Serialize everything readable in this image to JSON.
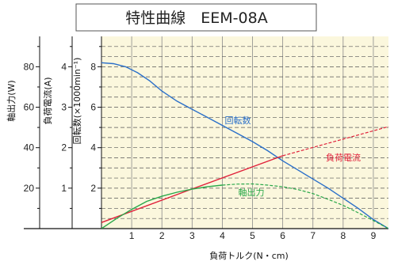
{
  "title": "特性曲線　EEM-08A",
  "chart_data": {
    "type": "line",
    "title": "特性曲線　EEM-08A",
    "xlabel": "負荷トルク(N・cm)",
    "xlim": [
      0,
      9.5
    ],
    "x_ticks": [
      1,
      2,
      3,
      4,
      5,
      6,
      7,
      8,
      9
    ],
    "grid": true,
    "y_axes": [
      {
        "label": "軸出力(W)",
        "ticks": [
          20,
          40,
          60,
          80
        ],
        "ylim": [
          0,
          95
        ]
      },
      {
        "label": "負荷電流(A)",
        "ticks": [
          1,
          2,
          3,
          4
        ],
        "ylim": [
          0,
          4.75
        ]
      },
      {
        "label": "回転数(×1000min⁻¹)",
        "ticks": [
          2,
          4,
          6,
          8
        ],
        "ylim": [
          0,
          9.5
        ]
      }
    ],
    "series": [
      {
        "name": "回転数",
        "axis": "回転数(×1000min⁻¹)",
        "color": "#2a6fc9",
        "style": "solid",
        "x": [
          0,
          0.4,
          0.8,
          1.2,
          1.6,
          2.0,
          2.5,
          3.0,
          3.5,
          4.0,
          4.5,
          5.0,
          5.5,
          6.0,
          6.5,
          7.0,
          7.5,
          8.0,
          8.5,
          9.0,
          9.5
        ],
        "values": [
          8.2,
          8.15,
          8.0,
          7.7,
          7.3,
          6.8,
          6.3,
          5.9,
          5.5,
          5.1,
          4.7,
          4.3,
          3.85,
          3.35,
          2.9,
          2.45,
          2.0,
          1.5,
          1.0,
          0.45,
          0.0
        ]
      },
      {
        "name": "負荷電流",
        "axis": "負荷電流(A)",
        "color": "#e0223b",
        "style": "solid-then-dashed",
        "solid_until": 6,
        "x": [
          0,
          3,
          6,
          9.5
        ],
        "values": [
          0.15,
          0.98,
          1.8,
          2.52
        ]
      },
      {
        "name": "軸出力",
        "axis": "軸出力(W)",
        "color": "#2aa84a",
        "style": "solid-then-dashed",
        "solid_until": 4,
        "x": [
          0,
          0.5,
          1.0,
          1.5,
          2.0,
          2.5,
          3.0,
          3.5,
          4.0,
          4.5,
          5.0,
          5.5,
          6.0,
          6.5,
          7.0,
          7.5,
          8.0,
          8.5,
          9.0,
          9.5
        ],
        "values": [
          0,
          5,
          9.5,
          13.5,
          16,
          18,
          19.5,
          20.7,
          21.5,
          22,
          22.1,
          21.5,
          20.7,
          19.3,
          17.3,
          14.5,
          11.5,
          7.8,
          4.0,
          0
        ]
      }
    ]
  }
}
